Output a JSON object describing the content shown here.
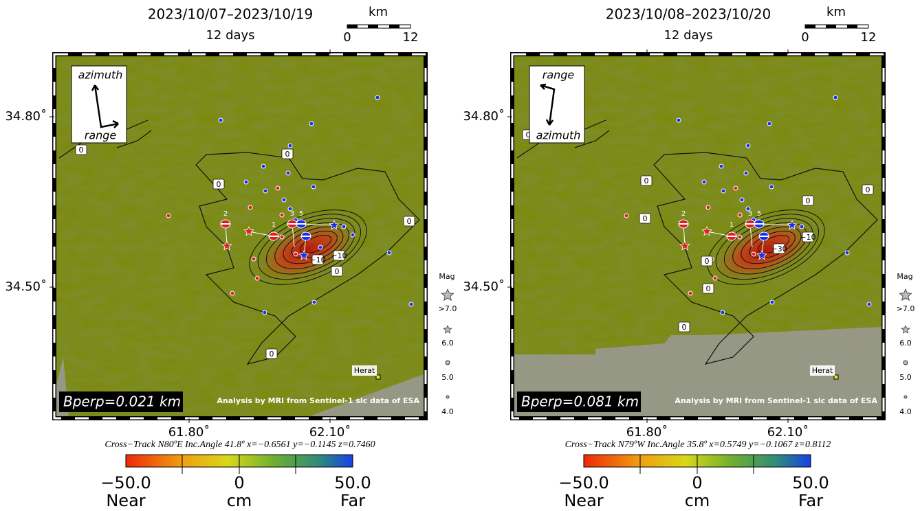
{
  "panels": [
    {
      "title": "2023/10/07–2023/10/19",
      "subtitle": "12 days",
      "scale": {
        "unit": "km",
        "start": "0",
        "end": "12"
      },
      "arrows": {
        "top": "azimuth",
        "bottom": "range"
      },
      "lat_labels": [
        "34.80˚",
        "34.50˚"
      ],
      "lon_labels": [
        "61.80˚",
        "62.10˚"
      ],
      "contour_labels": [
        "0",
        "0",
        "0",
        "0",
        "0",
        "0",
        "−10",
        "−10"
      ],
      "mechanism_labels": [
        "2",
        "1",
        "3",
        "5"
      ],
      "city": "Herat",
      "bperp": "Bperp=0.021 km",
      "credit": "Analysis by MRI from Sentinel-1 slc data of ESA",
      "geometry": "Cross−Track N80ºE  Inc.Angle 41.8º  x=−0.6561  y=−0.1145  z=0.7460",
      "colorbar": {
        "ticks": [
          "−50.0",
          "0",
          "50.0"
        ],
        "captions": [
          "Near",
          "cm",
          "Far"
        ]
      },
      "magnitude_legend": {
        "title": "Mag",
        "labels": [
          ">7.0",
          "6.0",
          "5.0",
          "4.0"
        ]
      }
    },
    {
      "title": "2023/10/08–2023/10/20",
      "subtitle": "12 days",
      "scale": {
        "unit": "km",
        "start": "0",
        "end": "12"
      },
      "arrows": {
        "top": "range",
        "bottom": "azimuth"
      },
      "lat_labels": [
        "34.80˚",
        "34.50˚"
      ],
      "lon_labels": [
        "61.80˚",
        "62.10˚"
      ],
      "contour_labels": [
        "0",
        "0",
        "0",
        "0",
        "0",
        "0",
        "0",
        "0",
        "−10",
        "−30"
      ],
      "mechanism_labels": [
        "2",
        "1",
        "3",
        "5"
      ],
      "city": "Herat",
      "bperp": "Bperp=0.081 km",
      "credit": "Analysis by MRI from Sentinel-1 slc data of ESA",
      "geometry": "Cross−Track N79ºW  Inc.Angle 35.8º  x=0.5749  y=−0.1067  z=0.8112",
      "colorbar": {
        "ticks": [
          "−50.0",
          "0",
          "50.0"
        ],
        "captions": [
          "Near",
          "cm",
          "Far"
        ]
      },
      "magnitude_legend": {
        "title": "Mag",
        "labels": [
          ">7.0",
          "6.0",
          "5.0",
          "4.0"
        ]
      }
    }
  ]
}
